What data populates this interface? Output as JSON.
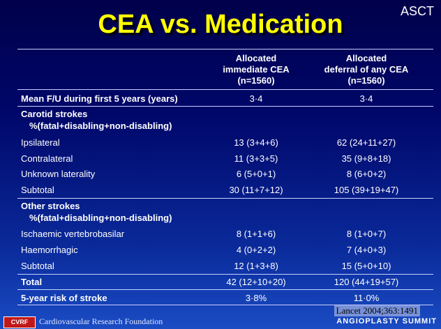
{
  "tag": "ASCT",
  "title": "CEA vs. Medication",
  "columns": {
    "col1": [
      "Allocated",
      "immediate CEA",
      "(n=1560)"
    ],
    "col2": [
      "Allocated",
      "deferral of any CEA",
      "(n=1560)"
    ]
  },
  "rows": [
    {
      "label": "Mean F/U during first 5 years (years)",
      "v1": "3·4",
      "v2": "3·4",
      "style": "bold"
    },
    {
      "label": "Carotid strokes",
      "v1": "",
      "v2": "",
      "style": "bold"
    },
    {
      "label": "%(fatal+disabling+non-disabling)",
      "v1": "",
      "v2": "",
      "style": "bold-sub"
    },
    {
      "label": "Ipsilateral",
      "v1": "13 (3+4+6)",
      "v2": "62 (24+11+27)",
      "style": "ind"
    },
    {
      "label": "Contralateral",
      "v1": "11 (3+3+5)",
      "v2": "35 (9+8+18)",
      "style": "ind"
    },
    {
      "label": "Unknown laterality",
      "v1": "6 (5+0+1)",
      "v2": "8 (6+0+2)",
      "style": "ind"
    },
    {
      "label": "Subtotal",
      "v1": "30 (11+7+12)",
      "v2": "105 (39+19+47)",
      "style": "ind"
    },
    {
      "label": "Other strokes",
      "v1": "",
      "v2": "",
      "style": "bold"
    },
    {
      "label": "%(fatal+disabling+non-disabling)",
      "v1": "",
      "v2": "",
      "style": "bold-sub"
    },
    {
      "label": "Ischaemic vertebrobasilar",
      "v1": "8 (1+1+6)",
      "v2": "8 (1+0+7)",
      "style": "ind"
    },
    {
      "label": "Haemorrhagic",
      "v1": "4 (0+2+2)",
      "v2": "7 (4+0+3)",
      "style": "ind"
    },
    {
      "label": "Subtotal",
      "v1": "12 (1+3+8)",
      "v2": "15 (5+0+10)",
      "style": "ind"
    },
    {
      "label": "Total",
      "v1": "42 (12+10+20)",
      "v2": "120 (44+19+57)",
      "style": "bold"
    },
    {
      "label": "5-year risk of stroke",
      "v1": "3·8%",
      "v2": "11·0%",
      "style": "bold"
    }
  ],
  "citation": "Lancet 2004;363:1491",
  "footer": {
    "logo": "CVRF",
    "org": "Cardiovascular Research Foundation",
    "summit": "ANGIOPLASTY SUMMIT"
  }
}
